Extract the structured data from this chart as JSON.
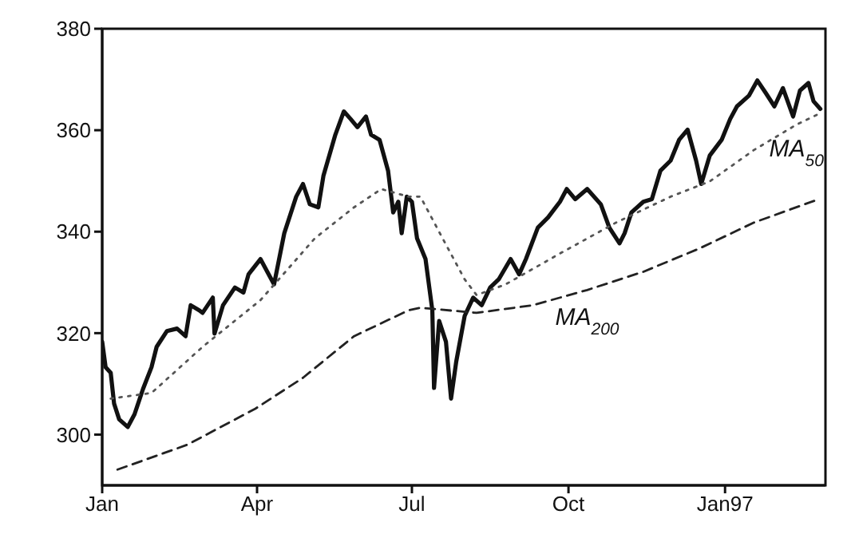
{
  "chart_data": {
    "type": "line",
    "xlim": [
      "1996-01-01",
      "1997-03-01"
    ],
    "xticks": [
      {
        "value": "1996-01-01",
        "label": "Jan"
      },
      {
        "value": "1996-04-01",
        "label": "Apr"
      },
      {
        "value": "1996-07-01",
        "label": "Jul"
      },
      {
        "value": "1996-10-01",
        "label": "Oct"
      },
      {
        "value": "1997-01-01",
        "label": "Jan97"
      }
    ],
    "ylim": [
      290,
      380
    ],
    "yticks": [
      300,
      320,
      340,
      360,
      380
    ],
    "grid": false,
    "legend": false,
    "marker": "none",
    "series": [
      {
        "color": "#111111",
        "line_style": "solid",
        "x": [
          "1996-01-01",
          "1996-01-03",
          "1996-01-06",
          "1996-01-08",
          "1996-01-11",
          "1996-01-16",
          "1996-01-20",
          "1996-01-25",
          "1996-01-30",
          "1996-02-02",
          "1996-02-08",
          "1996-02-14",
          "1996-02-19",
          "1996-02-22",
          "1996-02-27",
          "1996-02-29",
          "1996-03-06",
          "1996-03-07",
          "1996-03-12",
          "1996-03-19",
          "1996-03-24",
          "1996-03-27",
          "1996-04-03",
          "1996-04-11",
          "1996-04-17",
          "1996-04-24",
          "1996-04-28",
          "1996-05-02",
          "1996-05-07",
          "1996-05-10",
          "1996-05-17",
          "1996-05-22",
          "1996-05-26",
          "1996-05-30",
          "1996-06-04",
          "1996-06-07",
          "1996-06-12",
          "1996-06-17",
          "1996-06-20",
          "1996-06-23",
          "1996-06-25",
          "1996-06-28",
          "1996-07-01",
          "1996-07-04",
          "1996-07-09",
          "1996-07-13",
          "1996-07-14",
          "1996-07-17",
          "1996-07-21",
          "1996-07-24",
          "1996-07-27",
          "1996-08-01",
          "1996-08-06",
          "1996-08-11",
          "1996-08-16",
          "1996-08-21",
          "1996-08-28",
          "1996-09-02",
          "1996-09-06",
          "1996-09-13",
          "1996-09-19",
          "1996-09-26",
          "1996-09-30",
          "1996-10-05",
          "1996-10-12",
          "1996-10-20",
          "1996-10-25",
          "1996-10-31",
          "1996-11-03",
          "1996-11-07",
          "1996-11-14",
          "1996-11-19",
          "1996-11-24",
          "1996-11-30",
          "1996-12-05",
          "1996-12-10",
          "1996-12-15",
          "1996-12-18",
          "1996-12-23",
          "1996-12-30",
          "1997-01-04",
          "1997-01-08",
          "1997-01-15",
          "1997-01-20",
          "1997-01-25",
          "1997-01-30",
          "1997-02-04",
          "1997-02-10",
          "1997-02-14",
          "1997-02-19",
          "1997-02-22",
          "1997-02-26"
        ],
        "values": [
          318.3,
          313.3,
          312.2,
          306.1,
          303,
          301.5,
          304,
          309,
          313.3,
          317.3,
          320.4,
          320.9,
          319.4,
          325.5,
          324.5,
          324,
          327,
          319.9,
          325.5,
          329,
          328,
          331.6,
          334.6,
          329.6,
          339.7,
          346.9,
          349.4,
          345.4,
          344.8,
          351,
          359.1,
          363.7,
          362.2,
          360.6,
          362.7,
          359.1,
          358.1,
          352,
          343.8,
          345.9,
          339.7,
          346.9,
          345.9,
          338.7,
          334.6,
          324.5,
          309.2,
          322.4,
          318.3,
          307.1,
          314.3,
          323.4,
          327,
          325.5,
          329,
          330.6,
          334.6,
          331.6,
          334.6,
          340.8,
          342.8,
          345.9,
          348.4,
          346.4,
          348.4,
          345.4,
          340.8,
          337.7,
          339.7,
          343.8,
          345.9,
          346.4,
          352,
          354,
          358.1,
          360.1,
          354,
          349.4,
          355,
          358.1,
          362.2,
          364.7,
          366.8,
          369.8,
          367.3,
          364.7,
          368.3,
          362.7,
          367.8,
          369.3,
          365.7,
          364.2
        ]
      },
      {
        "name": "MA$_{50}$",
        "color": "#555555",
        "line_style": "dotted",
        "x": [
          "1996-01-06",
          "1996-01-30",
          "1996-02-29",
          "1996-04-03",
          "1996-05-05",
          "1996-05-28",
          "1996-06-13",
          "1996-06-29",
          "1996-07-06",
          "1996-07-19",
          "1996-08-01",
          "1996-08-08",
          "1996-08-25",
          "1996-09-26",
          "1996-10-29",
          "1996-11-30",
          "1996-12-23",
          "1997-01-18",
          "1997-02-12",
          "1997-02-25"
        ],
        "values": [
          307.1,
          308.2,
          317.3,
          326.5,
          338.7,
          344.8,
          348.4,
          346.9,
          346.9,
          338.7,
          330.6,
          327.5,
          329.6,
          335.7,
          341.8,
          346.9,
          349.9,
          356.1,
          361.1,
          363.2
        ]
      },
      {
        "name": "MA$_{200}$",
        "color": "#222222",
        "line_style": "dashed",
        "x": [
          "1996-01-10",
          "1996-02-20",
          "1996-03-31",
          "1996-04-28",
          "1996-05-28",
          "1996-06-29",
          "1996-07-06",
          "1996-08-08",
          "1996-09-10",
          "1996-10-12",
          "1996-11-14",
          "1996-12-17",
          "1997-01-18",
          "1997-02-25"
        ],
        "values": [
          293.1,
          298,
          305.1,
          311.2,
          319.4,
          324.5,
          325,
          324,
          325.5,
          328.5,
          332.1,
          336.7,
          341.8,
          346.4
        ]
      }
    ]
  }
}
